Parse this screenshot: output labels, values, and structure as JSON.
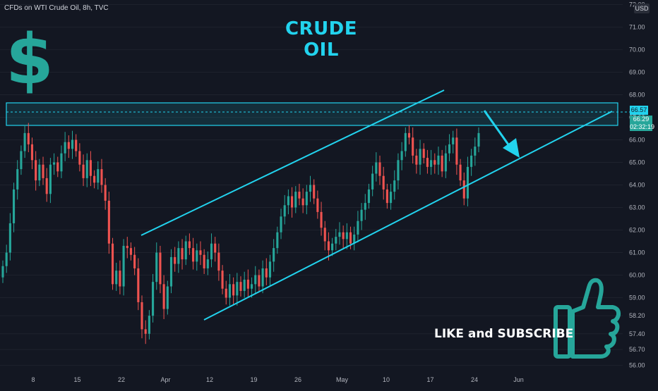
{
  "header": {
    "symbol_line": "CFDs on WTI Crude Oil, 8h, TVC"
  },
  "annotations": {
    "title": "CRUDE OIL",
    "call_to_action": "LIKE and SUBSCRIBE"
  },
  "currency_badge": "USD",
  "price_badges": {
    "level_1": "66.57",
    "level_2": "66.29",
    "countdown": "02:32:19"
  },
  "colors": {
    "background": "#131722",
    "up": "#26a69a",
    "down": "#ef5350",
    "accent": "#22d3ee",
    "dollar": "#26a69a"
  },
  "icons": [
    "dollar-sign-icon",
    "thumbs-up-icon",
    "down-arrow-icon"
  ],
  "chart_data": {
    "type": "candlestick",
    "timeframe": "8h",
    "x_tick_labels": [
      "8",
      "15",
      "22",
      "Apr",
      "12",
      "19",
      "26",
      "May",
      "10",
      "17",
      "24",
      "Jun"
    ],
    "y_tick_labels": [
      "56.00",
      "56.70",
      "57.40",
      "58.20",
      "59.00",
      "60.00",
      "61.00",
      "62.00",
      "63.00",
      "64.00",
      "65.00",
      "66.00",
      "67.00",
      "68.00",
      "69.00",
      "70.00",
      "71.00",
      "72.00"
    ],
    "ylim": [
      55.8,
      72.2
    ],
    "candles": [
      [
        59.9,
        60.4
      ],
      [
        60.4,
        61.0
      ],
      [
        61.0,
        62.3
      ],
      [
        62.3,
        63.8
      ],
      [
        63.8,
        64.7
      ],
      [
        64.7,
        65.5
      ],
      [
        65.5,
        66.3
      ],
      [
        66.3,
        65.8
      ],
      [
        65.8,
        65.1
      ],
      [
        65.1,
        64.2
      ],
      [
        64.2,
        64.9
      ],
      [
        64.9,
        64.3
      ],
      [
        64.3,
        63.6
      ],
      [
        63.6,
        64.9
      ],
      [
        64.9,
        65.0
      ],
      [
        65.0,
        64.6
      ],
      [
        64.6,
        65.4
      ],
      [
        65.4,
        65.9
      ],
      [
        65.9,
        65.6
      ],
      [
        65.6,
        66.0
      ],
      [
        66.0,
        65.5
      ],
      [
        65.5,
        64.9
      ],
      [
        64.9,
        64.3
      ],
      [
        64.3,
        65.1
      ],
      [
        65.1,
        64.4
      ],
      [
        64.4,
        64.1
      ],
      [
        64.1,
        64.7
      ],
      [
        64.7,
        64.0
      ],
      [
        64.0,
        63.3
      ],
      [
        63.3,
        61.4
      ],
      [
        61.4,
        59.6
      ],
      [
        59.6,
        60.2
      ],
      [
        60.2,
        59.5
      ],
      [
        59.5,
        61.3
      ],
      [
        61.3,
        61.2
      ],
      [
        61.2,
        60.9
      ],
      [
        60.9,
        60.3
      ],
      [
        60.3,
        58.8
      ],
      [
        58.8,
        57.6
      ],
      [
        57.6,
        57.4
      ],
      [
        57.4,
        58.2
      ],
      [
        58.2,
        59.7
      ],
      [
        59.7,
        61.0
      ],
      [
        61.0,
        59.6
      ],
      [
        59.6,
        58.5
      ],
      [
        58.5,
        59.5
      ],
      [
        59.5,
        60.8
      ],
      [
        60.8,
        60.5
      ],
      [
        60.5,
        61.2
      ],
      [
        61.2,
        60.7
      ],
      [
        60.7,
        61.5
      ],
      [
        61.5,
        61.2
      ],
      [
        61.2,
        60.6
      ],
      [
        60.6,
        61.1
      ],
      [
        61.1,
        60.9
      ],
      [
        60.9,
        60.3
      ],
      [
        60.3,
        60.7
      ],
      [
        60.7,
        61.4
      ],
      [
        61.4,
        61.0
      ],
      [
        61.0,
        60.2
      ],
      [
        60.2,
        59.4
      ],
      [
        59.4,
        59.0
      ],
      [
        59.0,
        59.6
      ],
      [
        59.6,
        59.1
      ],
      [
        59.1,
        59.7
      ],
      [
        59.7,
        59.3
      ],
      [
        59.3,
        59.8
      ],
      [
        59.8,
        59.4
      ],
      [
        59.4,
        59.6
      ],
      [
        59.6,
        60.0
      ],
      [
        60.0,
        59.5
      ],
      [
        59.5,
        60.3
      ],
      [
        60.3,
        59.9
      ],
      [
        59.9,
        60.6
      ],
      [
        60.6,
        61.2
      ],
      [
        61.2,
        61.9
      ],
      [
        61.9,
        62.6
      ],
      [
        62.6,
        63.1
      ],
      [
        63.1,
        63.5
      ],
      [
        63.5,
        63.0
      ],
      [
        63.0,
        63.7
      ],
      [
        63.7,
        63.4
      ],
      [
        63.4,
        63.1
      ],
      [
        63.1,
        63.7
      ],
      [
        63.7,
        64.0
      ],
      [
        64.0,
        63.4
      ],
      [
        63.4,
        62.8
      ],
      [
        62.8,
        62.1
      ],
      [
        62.1,
        61.5
      ],
      [
        61.5,
        61.1
      ],
      [
        61.1,
        61.4
      ],
      [
        61.4,
        61.7
      ],
      [
        61.7,
        61.9
      ],
      [
        61.9,
        61.6
      ],
      [
        61.6,
        61.9
      ],
      [
        61.9,
        61.4
      ],
      [
        61.4,
        61.8
      ],
      [
        61.8,
        62.4
      ],
      [
        62.4,
        62.9
      ],
      [
        62.9,
        63.2
      ],
      [
        63.2,
        63.8
      ],
      [
        63.8,
        64.5
      ],
      [
        64.5,
        65.0
      ],
      [
        65.0,
        64.4
      ],
      [
        64.4,
        63.8
      ],
      [
        63.8,
        63.2
      ],
      [
        63.2,
        63.7
      ],
      [
        63.7,
        64.2
      ],
      [
        64.2,
        65.1
      ],
      [
        65.1,
        65.5
      ],
      [
        65.5,
        66.3
      ],
      [
        66.3,
        66.1
      ],
      [
        66.1,
        65.3
      ],
      [
        65.3,
        64.9
      ],
      [
        64.9,
        65.6
      ],
      [
        65.6,
        65.2
      ],
      [
        65.2,
        64.8
      ],
      [
        64.8,
        65.1
      ],
      [
        65.1,
        64.9
      ],
      [
        64.9,
        65.3
      ],
      [
        65.3,
        64.6
      ],
      [
        64.6,
        65.4
      ],
      [
        65.4,
        65.8
      ],
      [
        65.8,
        66.1
      ],
      [
        66.1,
        64.9
      ],
      [
        64.9,
        64.2
      ],
      [
        64.2,
        63.4
      ],
      [
        63.4,
        64.8
      ],
      [
        64.8,
        65.3
      ],
      [
        65.3,
        65.7
      ],
      [
        65.7,
        66.3
      ]
    ]
  }
}
